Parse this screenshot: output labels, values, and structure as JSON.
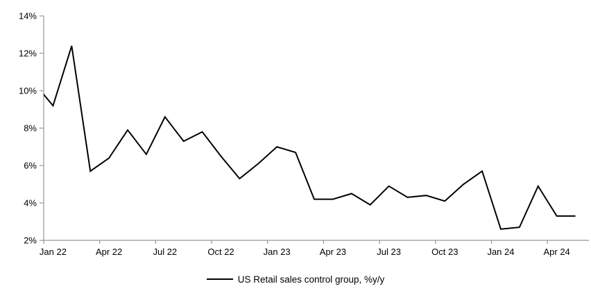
{
  "chart_data": {
    "type": "line",
    "title": "",
    "xlabel": "",
    "ylabel": "",
    "grid": false,
    "legend_position": "bottom-center",
    "ylim": [
      2,
      14
    ],
    "y_step": 2,
    "y_tick_labels": [
      "2%",
      "4%",
      "6%",
      "8%",
      "10%",
      "12%",
      "14%"
    ],
    "x_tick_labels": [
      "Jan 22",
      "Apr 22",
      "Jul 22",
      "Oct 22",
      "Jan 23",
      "Apr 23",
      "Jul 23",
      "Oct 23",
      "Jan 24",
      "Apr 24"
    ],
    "x_label_every_n_months": 3,
    "categories": [
      "Jan 22",
      "Feb 22",
      "Mar 22",
      "Apr 22",
      "May 22",
      "Jun 22",
      "Jul 22",
      "Aug 22",
      "Sep 22",
      "Oct 22",
      "Nov 22",
      "Dec 22",
      "Jan 23",
      "Feb 23",
      "Mar 23",
      "Apr 23",
      "May 23",
      "Jun 23",
      "Jul 23",
      "Aug 23",
      "Sep 23",
      "Oct 23",
      "Nov 23",
      "Dec 23",
      "Jan 24",
      "Feb 24",
      "Mar 24",
      "Apr 24",
      "May 24"
    ],
    "series": [
      {
        "name": "US Retail sales control group, %y/y",
        "color": "#000000",
        "values": [
          9.2,
          12.4,
          5.7,
          6.4,
          7.9,
          6.6,
          8.6,
          7.3,
          7.8,
          6.5,
          5.3,
          6.1,
          7.0,
          6.7,
          4.2,
          4.2,
          4.5,
          3.9,
          4.9,
          4.3,
          4.4,
          4.1,
          5.0,
          5.7,
          2.6,
          2.7,
          4.9,
          3.3,
          3.3
        ]
      }
    ],
    "lead_in_point": {
      "category": "Dec 21",
      "value": 10.4,
      "visible_at_axis": 9.8
    },
    "axis_color": "#969696",
    "text_color": "#000000",
    "background_color": "#ffffff"
  },
  "legend": {
    "label": "US Retail sales control group, %y/y"
  }
}
